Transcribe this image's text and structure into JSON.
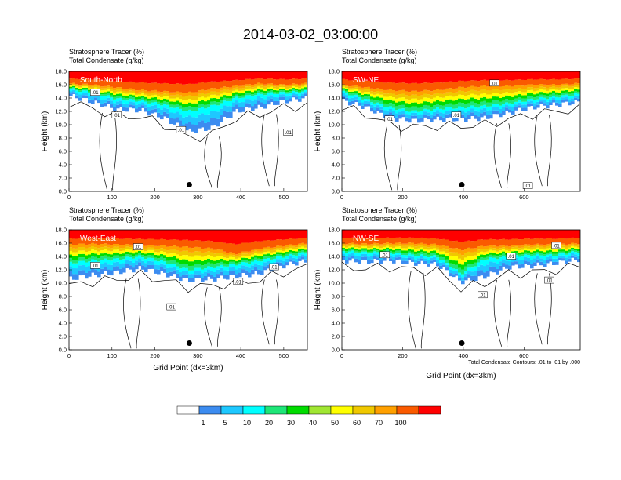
{
  "title": "2014-03-02_03:00:00",
  "chart_data": {
    "type": "heatmap",
    "colorbar": {
      "colors": [
        "#ffffff",
        "#3c8cf0",
        "#1ec8ff",
        "#00ffff",
        "#1ee678",
        "#00dc00",
        "#a0e632",
        "#ffff00",
        "#f0c800",
        "#ffa000",
        "#fa5a00",
        "#ff0000"
      ],
      "tick_labels": [
        "1",
        "5",
        "10",
        "20",
        "30",
        "40",
        "50",
        "60",
        "70",
        "100"
      ]
    },
    "panels": [
      {
        "name": "South-North",
        "header_line1": "Stratosphere Tracer   (%)",
        "header_line2": "Total Condensate   (g/kg)",
        "ylabel": "Height (km)",
        "xlabel": "",
        "xlim": [
          0,
          555
        ],
        "ylim": [
          0,
          18
        ],
        "xticks": [
          "0",
          "100",
          "200",
          "300",
          "400",
          "500"
        ],
        "xtick_values": [
          0,
          100,
          200,
          300,
          400,
          500
        ],
        "yticks": [
          "0.0",
          "2.0",
          "4.0",
          "6.0",
          "8.0",
          "10.0",
          "12.0",
          "14.0",
          "16.0",
          "18.0"
        ],
        "marker_x": 280,
        "contour_labels": [
          ".01",
          ".01",
          ".01",
          ".01"
        ],
        "note": ""
      },
      {
        "name": "SW-NE",
        "header_line1": "Stratosphere Tracer   (%)",
        "header_line2": "Total Condensate   (g/kg)",
        "ylabel": "Height (km)",
        "xlabel": "",
        "xlim": [
          0,
          785
        ],
        "ylim": [
          0,
          18
        ],
        "xticks": [
          "0",
          "200",
          "400",
          "600"
        ],
        "xtick_values": [
          0,
          200,
          400,
          600
        ],
        "yticks": [
          "0.0",
          "2.0",
          "4.0",
          "6.0",
          "8.0",
          "10.0",
          "12.0",
          "14.0",
          "16.0",
          "18.0"
        ],
        "marker_x": 395,
        "contour_labels": [
          ".01",
          ".01",
          ".01",
          ".01"
        ],
        "note": ""
      },
      {
        "name": "West-East",
        "header_line1": "Stratosphere Tracer   (%)",
        "header_line2": "Total Condensate   (g/kg)",
        "ylabel": "Height (km)",
        "xlabel": "Grid Point (dx=3km)",
        "xlim": [
          0,
          555
        ],
        "ylim": [
          0,
          18
        ],
        "xticks": [
          "0",
          "100",
          "200",
          "300",
          "400",
          "500"
        ],
        "xtick_values": [
          0,
          100,
          200,
          300,
          400,
          500
        ],
        "yticks": [
          "0.0",
          "2.0",
          "4.0",
          "6.0",
          "8.0",
          "10.0",
          "12.0",
          "14.0",
          "16.0",
          "18.0"
        ],
        "marker_x": 280,
        "contour_labels": [
          ".01",
          ".01",
          ".01",
          ".01",
          ".01"
        ],
        "note": ""
      },
      {
        "name": "NW-SE",
        "header_line1": "Stratosphere Tracer   (%)",
        "header_line2": "Total Condensate   (g/kg)",
        "ylabel": "Height (km)",
        "xlabel": "Grid Point (dx=3km)",
        "xlim": [
          0,
          785
        ],
        "ylim": [
          0,
          18
        ],
        "xticks": [
          "0",
          "200",
          "400",
          "600"
        ],
        "xtick_values": [
          0,
          200,
          400,
          600
        ],
        "yticks": [
          "0.0",
          "2.0",
          "4.0",
          "6.0",
          "8.0",
          "10.0",
          "12.0",
          "14.0",
          "16.0",
          "18.0"
        ],
        "marker_x": 395,
        "contour_labels": [
          ".01",
          ".01",
          ".01",
          ".01",
          ".01"
        ],
        "note": "Total Condensate Contours: .01 to .01 by .000"
      }
    ]
  }
}
